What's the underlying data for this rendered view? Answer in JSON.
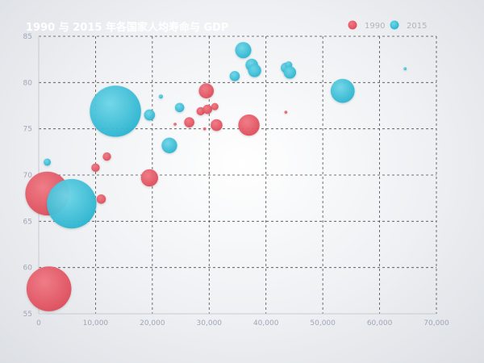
{
  "chart_data": {
    "type": "scatter",
    "title": "1990 与 2015 年各国家人均寿命与 GDP",
    "xlim": [
      0,
      70000
    ],
    "ylim": [
      55,
      85
    ],
    "x_ticks": [
      "0",
      "10,000",
      "20,000",
      "30,000",
      "40,000",
      "50,000",
      "60,000",
      "70,000"
    ],
    "y_ticks": [
      "55",
      "60",
      "65",
      "70",
      "75",
      "80",
      "85"
    ],
    "grid": true,
    "legend_position": "top-right",
    "series": [
      {
        "name": "1990",
        "color": "#e85a68",
        "points": [
          {
            "x": 1500,
            "y": 68,
            "size": 1100
          },
          {
            "x": 1800,
            "y": 57.7,
            "size": 1150
          },
          {
            "x": 11000,
            "y": 67.4,
            "size": 50
          },
          {
            "x": 10000,
            "y": 70.8,
            "size": 40
          },
          {
            "x": 12000,
            "y": 72,
            "size": 40
          },
          {
            "x": 19500,
            "y": 69.7,
            "size": 170
          },
          {
            "x": 24000,
            "y": 75.5,
            "size": 5
          },
          {
            "x": 26500,
            "y": 75.7,
            "size": 60
          },
          {
            "x": 28500,
            "y": 76.9,
            "size": 40
          },
          {
            "x": 29200,
            "y": 75,
            "size": 5
          },
          {
            "x": 29500,
            "y": 79.1,
            "size": 130
          },
          {
            "x": 29700,
            "y": 77.1,
            "size": 50
          },
          {
            "x": 31000,
            "y": 77.4,
            "size": 30
          },
          {
            "x": 31300,
            "y": 75.4,
            "size": 80
          },
          {
            "x": 37000,
            "y": 75.4,
            "size": 260
          },
          {
            "x": 43500,
            "y": 76.8,
            "size": 5
          }
        ]
      },
      {
        "name": "2015",
        "color": "#3dc0d8",
        "points": [
          {
            "x": 1500,
            "y": 71.4,
            "size": 30
          },
          {
            "x": 5800,
            "y": 66.9,
            "size": 1400
          },
          {
            "x": 13500,
            "y": 76.9,
            "size": 1500
          },
          {
            "x": 19500,
            "y": 76.5,
            "size": 70
          },
          {
            "x": 21500,
            "y": 78.5,
            "size": 10
          },
          {
            "x": 23000,
            "y": 73.2,
            "size": 140
          },
          {
            "x": 24800,
            "y": 77.3,
            "size": 50
          },
          {
            "x": 34500,
            "y": 80.7,
            "size": 60
          },
          {
            "x": 36000,
            "y": 83.5,
            "size": 150
          },
          {
            "x": 37500,
            "y": 81.9,
            "size": 90
          },
          {
            "x": 38000,
            "y": 81.3,
            "size": 100
          },
          {
            "x": 43500,
            "y": 81.6,
            "size": 60
          },
          {
            "x": 44000,
            "y": 81.9,
            "size": 30
          },
          {
            "x": 44200,
            "y": 81.1,
            "size": 90
          },
          {
            "x": 53500,
            "y": 79.1,
            "size": 330
          },
          {
            "x": 64500,
            "y": 81.5,
            "size": 5
          }
        ]
      }
    ]
  }
}
